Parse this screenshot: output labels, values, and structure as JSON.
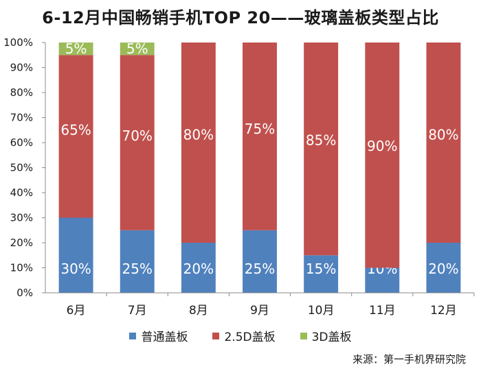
{
  "chart_data": {
    "type": "bar",
    "stacked": "percent",
    "title": "6-12月中国畅销手机TOP 20——玻璃盖板类型占比",
    "categories": [
      "6月",
      "7月",
      "8月",
      "9月",
      "10月",
      "11月",
      "12月"
    ],
    "series": [
      {
        "name": "普通盖板",
        "color": "#4f81bd",
        "values": [
          30,
          25,
          20,
          25,
          15,
          10,
          20
        ],
        "labels": [
          "30%",
          "25%",
          "20%",
          "25%",
          "15%",
          "10%",
          "20%"
        ]
      },
      {
        "name": "2.5D盖板",
        "color": "#c0504d",
        "values": [
          65,
          70,
          80,
          75,
          85,
          90,
          80
        ],
        "labels": [
          "65%",
          "70%",
          "80%",
          "75%",
          "85%",
          "90%",
          "80%"
        ]
      },
      {
        "name": "3D盖板",
        "color": "#9bbb59",
        "values": [
          5,
          5,
          0,
          0,
          0,
          0,
          0
        ],
        "labels": [
          "5%",
          "5%",
          "",
          "",
          "",
          "",
          ""
        ]
      }
    ],
    "ylim": [
      0,
      100
    ],
    "yticks": [
      "0%",
      "10%",
      "20%",
      "30%",
      "40%",
      "50%",
      "60%",
      "70%",
      "80%",
      "90%",
      "100%"
    ],
    "grid": false,
    "legend_position": "bottom",
    "source_note": "来源：第一手机界研究院"
  }
}
